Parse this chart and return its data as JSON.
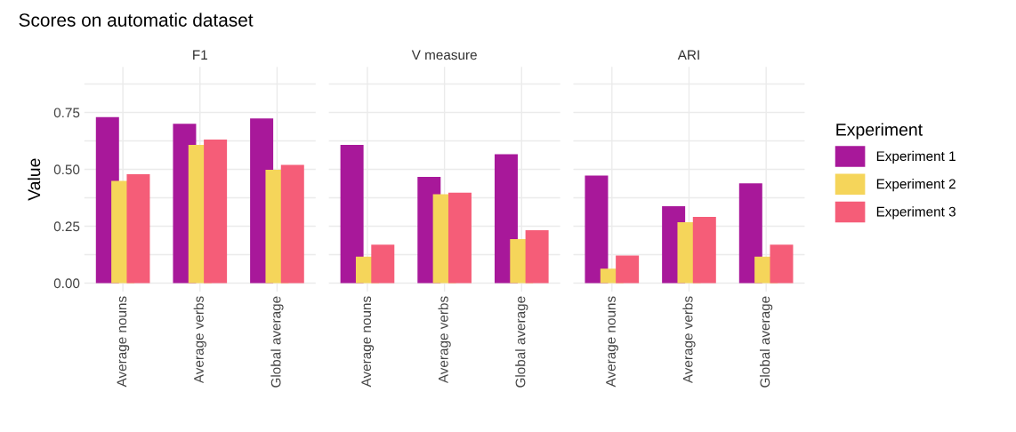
{
  "chart_data": [
    {
      "type": "bar",
      "title": "Scores on automatic dataset",
      "subtitle": "F1",
      "ylabel": "Value",
      "legend_title": "Experiment",
      "legend": "right",
      "categories": [
        "Average nouns",
        "Average verbs",
        "Global average"
      ],
      "series": [
        {
          "name": "Experiment 1",
          "color": "#a8189a",
          "values": [
            0.73,
            0.7,
            0.724
          ]
        },
        {
          "name": "Experiment 2",
          "color": "#f5d55a",
          "values": [
            0.449,
            0.607,
            0.498
          ]
        },
        {
          "name": "Experiment 3",
          "color": "#f55d78",
          "values": [
            0.478,
            0.631,
            0.52
          ]
        }
      ],
      "ylim": [
        -0.0375,
        0.95
      ],
      "yticks": [
        {
          "value": 0,
          "label": "0.00"
        },
        {
          "value": 0.125,
          "label": null
        },
        {
          "value": 0.25,
          "label": "0.25"
        },
        {
          "value": 0.375,
          "label": null
        },
        {
          "value": 0.5,
          "label": "0.50"
        },
        {
          "value": 0.625,
          "label": null
        },
        {
          "value": 0.75,
          "label": "0.75"
        },
        {
          "value": 0.875,
          "label": null
        }
      ],
      "grid": true
    },
    {
      "type": "bar",
      "subtitle": "V measure",
      "categories": [
        "Average nouns",
        "Average verbs",
        "Global average"
      ],
      "series": [
        {
          "color": "#a8189a",
          "values": [
            0.607,
            0.467,
            0.566
          ]
        },
        {
          "color": "#f5d55a",
          "values": [
            0.116,
            0.391,
            0.193
          ]
        },
        {
          "color": "#f55d78",
          "values": [
            0.169,
            0.397,
            0.232
          ]
        }
      ],
      "ylim": [
        -0.0375,
        0.95
      ],
      "yticks": [
        0,
        {
          "value": 0.125,
          "label": null
        },
        0.25,
        {
          "value": 0.375,
          "label": null
        },
        0.5,
        {
          "value": 0.625,
          "label": null
        },
        0.75,
        {
          "value": 0.875,
          "label": null
        }
      ],
      "grid": true,
      "tick_labels": "x"
    },
    {
      "type": "bar",
      "subtitle": "ARI",
      "categories": [
        "Average nouns",
        "Average verbs",
        "Global average"
      ],
      "series": [
        {
          "color": "#a8189a",
          "values": [
            0.473,
            0.338,
            0.438
          ]
        },
        {
          "color": "#f5d55a",
          "values": [
            0.063,
            0.267,
            0.116
          ]
        },
        {
          "color": "#f55d78",
          "values": [
            0.121,
            0.291,
            0.169
          ]
        }
      ],
      "ylim": [
        -0.0375,
        0.95
      ],
      "yticks": [
        0,
        {
          "value": 0.125,
          "label": null
        },
        0.25,
        {
          "value": 0.375,
          "label": null
        },
        0.5,
        {
          "value": 0.625,
          "label": null
        },
        0.75,
        {
          "value": 0.875,
          "label": null
        }
      ],
      "grid": true,
      "tick_labels": "x"
    }
  ]
}
